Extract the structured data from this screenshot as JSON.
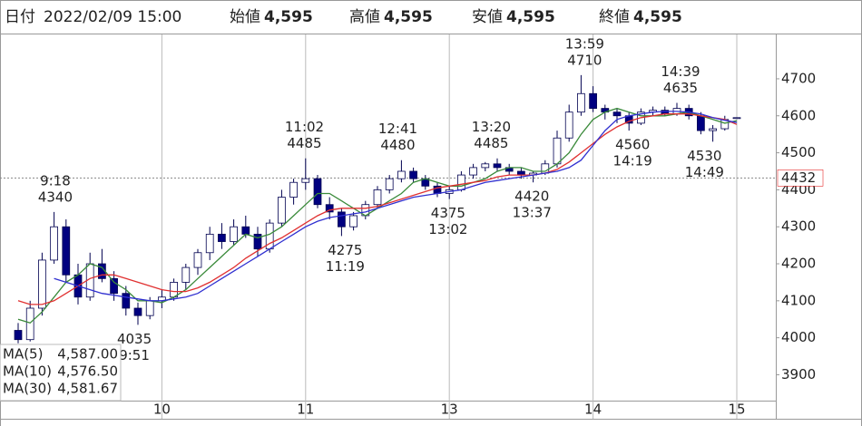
{
  "header": {
    "date_label": "日付",
    "datetime": "2022/02/09 15:00",
    "fields": [
      {
        "label": "始値",
        "value": "4,595",
        "color": "#000000"
      },
      {
        "label": "高値",
        "value": "4,595",
        "color": "#e00000"
      },
      {
        "label": "安値",
        "value": "4,595",
        "color": "#007000"
      },
      {
        "label": "終値",
        "value": "4,595",
        "color": "#000000"
      }
    ]
  },
  "chart_data": {
    "type": "candlestick",
    "categories": [
      null,
      null,
      null,
      null,
      null,
      null,
      null,
      null,
      null,
      null,
      null,
      null,
      "10",
      null,
      null,
      null,
      null,
      null,
      null,
      null,
      null,
      null,
      null,
      null,
      "11",
      null,
      null,
      null,
      null,
      null,
      null,
      null,
      null,
      null,
      null,
      null,
      "13",
      null,
      null,
      null,
      null,
      null,
      null,
      null,
      null,
      null,
      null,
      null,
      "14",
      null,
      null,
      null,
      null,
      null,
      null,
      null,
      null,
      null,
      null,
      null,
      "15"
    ],
    "open": [
      4020,
      3995,
      4080,
      4210,
      4300,
      4170,
      4110,
      4200,
      4160,
      4120,
      4080,
      4060,
      4100,
      4110,
      4150,
      4190,
      4230,
      4280,
      4260,
      4300,
      4280,
      4240,
      4310,
      4380,
      4420,
      4430,
      4360,
      4340,
      4300,
      4330,
      4360,
      4400,
      4430,
      4450,
      4430,
      4410,
      4390,
      4400,
      4440,
      4460,
      4470,
      4460,
      4450,
      4440,
      4445,
      4470,
      4540,
      4610,
      4660,
      4620,
      4610,
      4600,
      4580,
      4610,
      4615,
      4605,
      4620,
      4600,
      4560,
      4565,
      4595
    ],
    "high": [
      4040,
      4100,
      4230,
      4340,
      4320,
      4200,
      4230,
      4240,
      4180,
      4140,
      4095,
      4110,
      4130,
      4160,
      4200,
      4240,
      4300,
      4310,
      4320,
      4330,
      4300,
      4320,
      4400,
      4430,
      4485,
      4440,
      4380,
      4350,
      4340,
      4370,
      4410,
      4440,
      4480,
      4460,
      4440,
      4420,
      4410,
      4450,
      4470,
      4475,
      4485,
      4470,
      4460,
      4450,
      4480,
      4560,
      4630,
      4710,
      4680,
      4630,
      4620,
      4610,
      4620,
      4625,
      4625,
      4635,
      4630,
      4610,
      4575,
      4600,
      4595
    ],
    "low": [
      3985,
      3990,
      4060,
      4200,
      4150,
      4090,
      4100,
      4150,
      4100,
      4060,
      4035,
      4050,
      4080,
      4100,
      4130,
      4170,
      4210,
      4240,
      4250,
      4270,
      4220,
      4230,
      4300,
      4360,
      4400,
      4350,
      4320,
      4275,
      4290,
      4320,
      4350,
      4390,
      4420,
      4420,
      4400,
      4380,
      4375,
      4395,
      4430,
      4450,
      4450,
      4440,
      4430,
      4420,
      4440,
      4460,
      4530,
      4600,
      4610,
      4590,
      4580,
      4560,
      4575,
      4600,
      4600,
      4600,
      4590,
      4550,
      4530,
      4560,
      4595
    ],
    "close": [
      3995,
      4080,
      4210,
      4300,
      4170,
      4110,
      4200,
      4160,
      4120,
      4080,
      4060,
      4100,
      4110,
      4150,
      4190,
      4230,
      4280,
      4260,
      4300,
      4280,
      4240,
      4310,
      4380,
      4420,
      4430,
      4360,
      4340,
      4300,
      4330,
      4360,
      4400,
      4430,
      4450,
      4430,
      4410,
      4390,
      4400,
      4440,
      4460,
      4470,
      4460,
      4450,
      4440,
      4445,
      4470,
      4540,
      4610,
      4660,
      4620,
      4610,
      4600,
      4580,
      4610,
      4615,
      4605,
      4620,
      4600,
      4560,
      4565,
      4590,
      4595
    ],
    "up_color": "#ffffff",
    "down_color": "#000080",
    "candle_edge": "#000050",
    "series": [
      {
        "name": "MA(5)",
        "color": "#3a8a3a",
        "values": [
          4050,
          4040,
          4070,
          4110,
          4150,
          4170,
          4200,
          4190,
          4150,
          4130,
          4100,
          4100,
          4095,
          4110,
          4130,
          4160,
          4190,
          4220,
          4250,
          4280,
          4270,
          4280,
          4300,
          4330,
          4360,
          4390,
          4390,
          4370,
          4350,
          4330,
          4350,
          4370,
          4390,
          4420,
          4430,
          4420,
          4410,
          4410,
          4420,
          4430,
          4450,
          4460,
          4460,
          4450,
          4450,
          4470,
          4500,
          4550,
          4590,
          4610,
          4620,
          4610,
          4600,
          4600,
          4600,
          4605,
          4610,
          4600,
          4590,
          4580,
          4587
        ],
        "value_labels": [
          null,
          null,
          null,
          null,
          null,
          null,
          null,
          null,
          null,
          null,
          null,
          null,
          null,
          null,
          null,
          null,
          null,
          null,
          null,
          null,
          null,
          null,
          null,
          null,
          null,
          null,
          null,
          null,
          null,
          null,
          null,
          null,
          null,
          null,
          null,
          null,
          null,
          null,
          null,
          null,
          null,
          null,
          null,
          null,
          null,
          null,
          null,
          null,
          null,
          null,
          null,
          null,
          null,
          null,
          null,
          null,
          null,
          null,
          null,
          null,
          "4,587.00"
        ]
      },
      {
        "name": "MA(10)",
        "color": "#e03030",
        "values": [
          4100,
          4090,
          4090,
          4100,
          4120,
          4140,
          4160,
          4170,
          4170,
          4160,
          4150,
          4140,
          4130,
          4125,
          4125,
          4135,
          4150,
          4170,
          4190,
          4215,
          4235,
          4255,
          4270,
          4290,
          4310,
          4330,
          4345,
          4350,
          4350,
          4350,
          4355,
          4365,
          4375,
          4385,
          4395,
          4405,
          4410,
          4415,
          4420,
          4425,
          4435,
          4440,
          4440,
          4440,
          4445,
          4455,
          4475,
          4500,
          4525,
          4550,
          4570,
          4585,
          4595,
          4600,
          4605,
          4605,
          4605,
          4600,
          4595,
          4590,
          4576.5
        ],
        "value_labels": [
          null,
          null,
          null,
          null,
          null,
          null,
          null,
          null,
          null,
          null,
          null,
          null,
          null,
          null,
          null,
          null,
          null,
          null,
          null,
          null,
          null,
          null,
          null,
          null,
          null,
          null,
          null,
          null,
          null,
          null,
          null,
          null,
          null,
          null,
          null,
          null,
          null,
          null,
          null,
          null,
          null,
          null,
          null,
          null,
          null,
          null,
          null,
          null,
          null,
          null,
          null,
          null,
          null,
          null,
          null,
          null,
          null,
          null,
          null,
          null,
          "4,576.50"
        ]
      },
      {
        "name": "MA(30)",
        "color": "#3030d0",
        "values": [
          null,
          null,
          null,
          4160,
          4150,
          4140,
          4130,
          4120,
          4115,
          4110,
          4105,
          4100,
          4100,
          4105,
          4110,
          4120,
          4140,
          4160,
          4180,
          4200,
          4220,
          4240,
          4260,
          4280,
          4300,
          4315,
          4325,
          4330,
          4335,
          4340,
          4350,
          4360,
          4370,
          4380,
          4385,
          4390,
          4395,
          4400,
          4410,
          4420,
          4425,
          4430,
          4435,
          4440,
          4445,
          4450,
          4460,
          4480,
          4520,
          4560,
          4590,
          4600,
          4605,
          4610,
          4612,
          4612,
          4610,
          4605,
          4595,
          4588,
          4581.67
        ],
        "value_labels": [
          null,
          null,
          null,
          null,
          null,
          null,
          null,
          null,
          null,
          null,
          null,
          null,
          null,
          null,
          null,
          null,
          null,
          null,
          null,
          null,
          null,
          null,
          null,
          null,
          null,
          null,
          null,
          null,
          null,
          null,
          null,
          null,
          null,
          null,
          null,
          null,
          null,
          null,
          null,
          null,
          null,
          null,
          null,
          null,
          null,
          null,
          null,
          null,
          null,
          null,
          null,
          null,
          null,
          null,
          null,
          null,
          null,
          null,
          null,
          null,
          "4,581.67"
        ]
      }
    ],
    "ylim": [
      3835,
      4815
    ],
    "yticks": [
      3900,
      4000,
      4100,
      4200,
      4300,
      4400,
      4500,
      4600,
      4700
    ],
    "reference_line": {
      "value": 4432,
      "color": "#e00000"
    },
    "annotations": [
      {
        "time": "9:18",
        "value": 4340,
        "side": "above"
      },
      {
        "time": "9:51",
        "value": 4035,
        "side": "below"
      },
      {
        "time": "11:02",
        "value": 4485,
        "side": "above"
      },
      {
        "time": "11:19",
        "value": 4275,
        "side": "below"
      },
      {
        "time": "12:41",
        "value": 4480,
        "side": "above"
      },
      {
        "time": "13:02",
        "value": 4375,
        "side": "below"
      },
      {
        "time": "13:20",
        "value": 4485,
        "side": "above"
      },
      {
        "time": "13:37",
        "value": 4420,
        "side": "below"
      },
      {
        "time": "13:59",
        "value": 4710,
        "side": "above"
      },
      {
        "time": "14:19",
        "value": 4560,
        "side": "below"
      },
      {
        "time": "14:39",
        "value": 4635,
        "side": "above"
      },
      {
        "time": "14:49",
        "value": 4530,
        "side": "below"
      }
    ]
  }
}
